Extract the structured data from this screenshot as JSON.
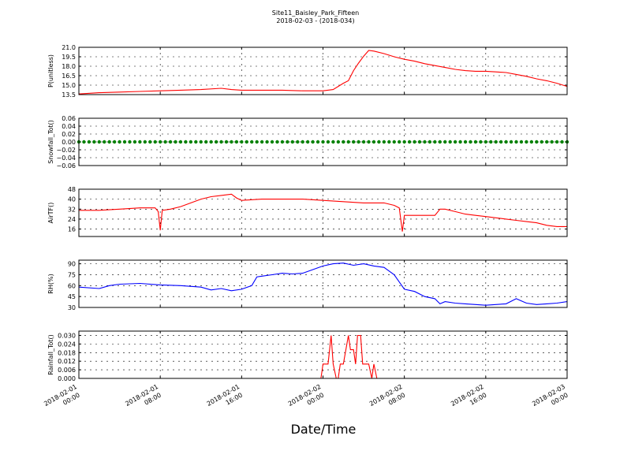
{
  "figure": {
    "title": "Site11_Baisley_Park_Fifteen",
    "subtitle": "2018-02-03 - (2018-034)",
    "xlabel": "Date/Time",
    "x_ticks": [
      "2018-02-01\n00:00",
      "2018-02-01\n08:00",
      "2018-02-01\n16:00",
      "2018-02-02\n00:00",
      "2018-02-02\n08:00",
      "2018-02-02\n16:00",
      "2018-02-03\n00:00"
    ],
    "x_range_hours": [
      0,
      48
    ]
  },
  "chart_data": [
    {
      "type": "line",
      "ylabel": "P(unitless)",
      "color": "#ff0000",
      "ylim": [
        13.5,
        21.0
      ],
      "yticks": [
        "13.5",
        "15.0",
        "16.5",
        "18.0",
        "19.5",
        "21.0"
      ],
      "grid": true,
      "points": [
        [
          0,
          13.6
        ],
        [
          2,
          13.8
        ],
        [
          4,
          13.9
        ],
        [
          6,
          14.0
        ],
        [
          8,
          14.1
        ],
        [
          10,
          14.2
        ],
        [
          12,
          14.3
        ],
        [
          14,
          14.5
        ],
        [
          15,
          14.3
        ],
        [
          16,
          14.2
        ],
        [
          18,
          14.2
        ],
        [
          20,
          14.2
        ],
        [
          22,
          14.1
        ],
        [
          24,
          14.1
        ],
        [
          25,
          14.3
        ],
        [
          26,
          15.3
        ],
        [
          26.5,
          15.7
        ],
        [
          27,
          17.3
        ],
        [
          27.5,
          18.5
        ],
        [
          28,
          19.6
        ],
        [
          28.5,
          20.5
        ],
        [
          29,
          20.4
        ],
        [
          30,
          20.0
        ],
        [
          31,
          19.5
        ],
        [
          32,
          19.1
        ],
        [
          33,
          18.8
        ],
        [
          34,
          18.4
        ],
        [
          35,
          18.1
        ],
        [
          36,
          17.8
        ],
        [
          37,
          17.5
        ],
        [
          38,
          17.3
        ],
        [
          39,
          17.2
        ],
        [
          40,
          17.2
        ],
        [
          41,
          17.1
        ],
        [
          42,
          17.0
        ],
        [
          43,
          16.7
        ],
        [
          44,
          16.4
        ],
        [
          45,
          16.0
        ],
        [
          46,
          15.7
        ],
        [
          47,
          15.3
        ],
        [
          48,
          14.8
        ]
      ]
    },
    {
      "type": "scatter",
      "ylabel": "Snowfall_Tot()",
      "color": "#008000",
      "ylim": [
        -0.06,
        0.06
      ],
      "yticks": [
        "−0.06",
        "−0.04",
        "−0.02",
        "0.00",
        "0.02",
        "0.04",
        "0.06"
      ],
      "grid": true,
      "constant_value": 0.0
    },
    {
      "type": "line",
      "ylabel": "AirTF()",
      "color": "#ff0000",
      "ylim": [
        10,
        48
      ],
      "yticks": [
        "16",
        "24",
        "32",
        "40",
        "48"
      ],
      "grid": true,
      "points": [
        [
          0,
          31
        ],
        [
          2,
          31
        ],
        [
          4,
          32
        ],
        [
          6,
          33
        ],
        [
          7.5,
          33
        ],
        [
          7.8,
          30
        ],
        [
          8,
          15
        ],
        [
          8.2,
          31
        ],
        [
          9,
          32
        ],
        [
          10,
          34
        ],
        [
          11,
          37
        ],
        [
          12,
          40
        ],
        [
          13,
          42
        ],
        [
          14,
          43
        ],
        [
          15,
          44
        ],
        [
          15.5,
          41
        ],
        [
          16,
          39
        ],
        [
          18,
          40
        ],
        [
          20,
          40
        ],
        [
          22,
          40
        ],
        [
          24,
          39
        ],
        [
          26,
          38
        ],
        [
          28,
          37
        ],
        [
          30,
          37
        ],
        [
          31,
          35
        ],
        [
          31.5,
          33
        ],
        [
          31.8,
          14
        ],
        [
          32,
          27
        ],
        [
          34,
          27
        ],
        [
          35,
          27
        ],
        [
          35.5,
          32
        ],
        [
          36,
          32
        ],
        [
          37,
          30
        ],
        [
          38,
          28
        ],
        [
          39,
          27
        ],
        [
          40,
          26
        ],
        [
          41,
          25
        ],
        [
          42,
          24
        ],
        [
          43,
          23
        ],
        [
          44,
          22
        ],
        [
          45,
          21
        ],
        [
          46,
          19
        ],
        [
          47,
          18
        ],
        [
          48,
          18
        ]
      ]
    },
    {
      "type": "line",
      "ylabel": "RH(%)",
      "color": "#0000ff",
      "ylim": [
        30,
        95
      ],
      "yticks": [
        "30",
        "45",
        "60",
        "75",
        "90"
      ],
      "grid": true,
      "points": [
        [
          0,
          58
        ],
        [
          2,
          56
        ],
        [
          3,
          60
        ],
        [
          4,
          62
        ],
        [
          6,
          63
        ],
        [
          8,
          61
        ],
        [
          10,
          60
        ],
        [
          12,
          58
        ],
        [
          13,
          54
        ],
        [
          14,
          56
        ],
        [
          15,
          53
        ],
        [
          16,
          55
        ],
        [
          17,
          60
        ],
        [
          17.5,
          72
        ],
        [
          18,
          73
        ],
        [
          19,
          75
        ],
        [
          20,
          77
        ],
        [
          21,
          76
        ],
        [
          22,
          77
        ],
        [
          23,
          82
        ],
        [
          24,
          87
        ],
        [
          25,
          90
        ],
        [
          26,
          91
        ],
        [
          27,
          88
        ],
        [
          28,
          90
        ],
        [
          29,
          87
        ],
        [
          30,
          85
        ],
        [
          30.5,
          80
        ],
        [
          31,
          75
        ],
        [
          31.5,
          65
        ],
        [
          32,
          55
        ],
        [
          33,
          52
        ],
        [
          34,
          45
        ],
        [
          35,
          42
        ],
        [
          35.5,
          35
        ],
        [
          36,
          38
        ],
        [
          37,
          36
        ],
        [
          38,
          35
        ],
        [
          39,
          34
        ],
        [
          40,
          33
        ],
        [
          41,
          34
        ],
        [
          42,
          35
        ],
        [
          43,
          42
        ],
        [
          44,
          36
        ],
        [
          45,
          34
        ],
        [
          46,
          35
        ],
        [
          47,
          36
        ],
        [
          48,
          38
        ]
      ]
    },
    {
      "type": "line",
      "ylabel": "Rainfall_Tot()",
      "color": "#ff0000",
      "ylim": [
        0,
        0.033
      ],
      "yticks": [
        "0.000",
        "0.006",
        "0.012",
        "0.018",
        "0.024",
        "0.030"
      ],
      "grid": true,
      "points": [
        [
          0,
          0
        ],
        [
          23.8,
          0
        ],
        [
          24,
          0.01
        ],
        [
          24.5,
          0.01
        ],
        [
          24.8,
          0.03
        ],
        [
          25,
          0.01
        ],
        [
          25.3,
          0.0
        ],
        [
          25.5,
          0.0
        ],
        [
          25.7,
          0.01
        ],
        [
          26,
          0.01
        ],
        [
          26.5,
          0.03
        ],
        [
          26.7,
          0.02
        ],
        [
          27,
          0.02
        ],
        [
          27.2,
          0.01
        ],
        [
          27.4,
          0.03
        ],
        [
          27.7,
          0.03
        ],
        [
          27.9,
          0.01
        ],
        [
          28.5,
          0.01
        ],
        [
          28.8,
          0.0
        ],
        [
          29,
          0.01
        ],
        [
          29.3,
          0.0
        ],
        [
          48,
          0
        ]
      ]
    }
  ]
}
